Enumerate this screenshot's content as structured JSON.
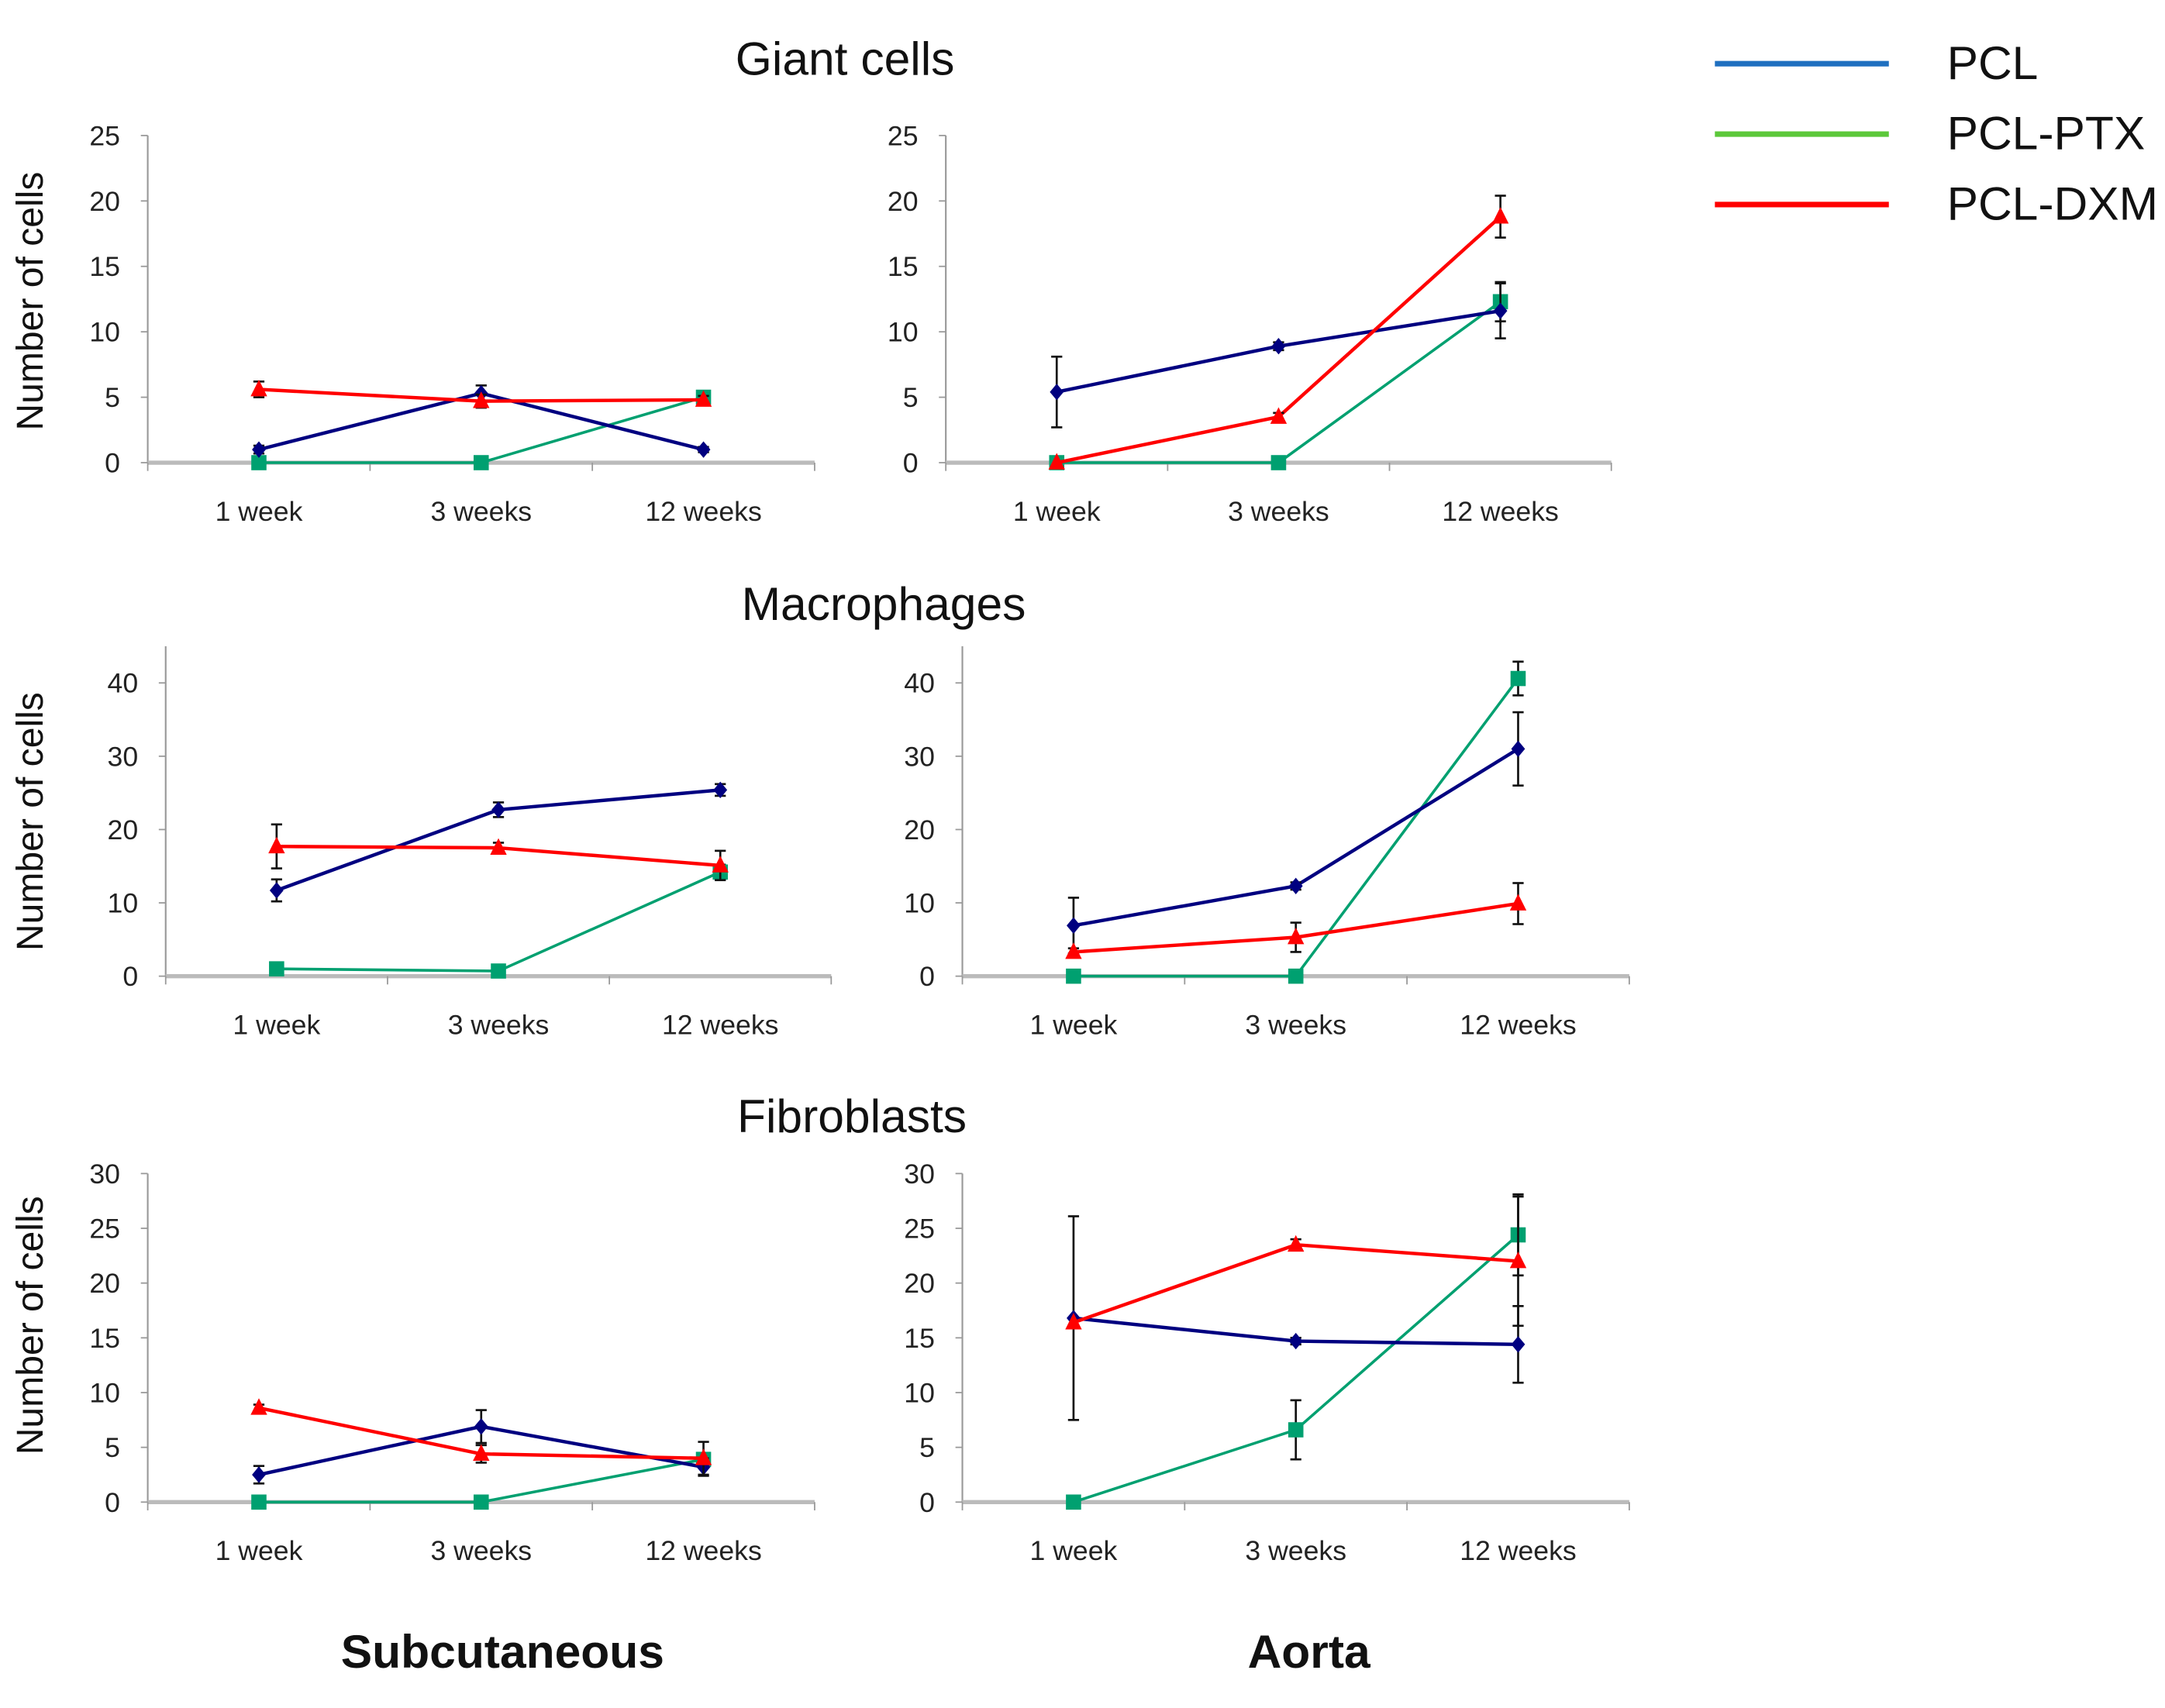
{
  "chart_data": {
    "type": "line",
    "categories": [
      "1 week",
      "3 weeks",
      "12 weeks"
    ],
    "ylabel": "Number of cells",
    "column_labels": [
      "Subcutaneous",
      "Aorta"
    ],
    "legend": {
      "placement": "top-right",
      "entries": [
        {
          "name": "PCL",
          "color": "#1f6fc0"
        },
        {
          "name": "PCL-PTX",
          "color": "#5cc83a"
        },
        {
          "name": "PCL-DXM",
          "color": "#ff0000"
        }
      ]
    },
    "series_style": {
      "PCL": {
        "line": "#000080",
        "marker": "diamond"
      },
      "PCL-PTX": {
        "line": "#00a070",
        "marker": "square"
      },
      "PCL-DXM": {
        "line": "#ff0000",
        "marker": "triangle"
      }
    },
    "rows": [
      {
        "title": "Giant cells",
        "ylim": [
          0,
          25
        ],
        "yticks": [
          0,
          5,
          10,
          15,
          20,
          25
        ],
        "panels": [
          {
            "site": "Subcutaneous",
            "series": [
              {
                "name": "PCL",
                "values": [
                  1.0,
                  5.3,
                  1.0
                ],
                "errors": [
                  0.3,
                  0.6,
                  0.2
                ]
              },
              {
                "name": "PCL-PTX",
                "values": [
                  0,
                  0,
                  5.0
                ],
                "errors": [
                  0,
                  0,
                  0.2
                ]
              },
              {
                "name": "PCL-DXM",
                "values": [
                  5.6,
                  4.7,
                  4.8
                ],
                "errors": [
                  0.6,
                  0.5,
                  0.3
                ]
              }
            ]
          },
          {
            "site": "Aorta",
            "series": [
              {
                "name": "PCL",
                "values": [
                  5.4,
                  8.9,
                  11.6
                ],
                "errors": [
                  2.7,
                  0.3,
                  2.1
                ]
              },
              {
                "name": "PCL-PTX",
                "values": [
                  0,
                  0,
                  12.3
                ],
                "errors": [
                  0,
                  0,
                  1.5
                ]
              },
              {
                "name": "PCL-DXM",
                "values": [
                  0,
                  3.5,
                  18.8
                ],
                "errors": [
                  0,
                  0.3,
                  1.6
                ]
              }
            ]
          }
        ]
      },
      {
        "title": "Macrophages",
        "ylim": [
          0,
          45
        ],
        "yticks": [
          0,
          10,
          20,
          30,
          40
        ],
        "panels": [
          {
            "site": "Subcutaneous",
            "series": [
              {
                "name": "PCL",
                "values": [
                  11.7,
                  22.7,
                  25.4
                ],
                "errors": [
                  1.5,
                  1.0,
                  0.8
                ]
              },
              {
                "name": "PCL-PTX",
                "values": [
                  1.0,
                  0.7,
                  14.2
                ],
                "errors": [
                  0,
                  0,
                  1.0
                ]
              },
              {
                "name": "PCL-DXM",
                "values": [
                  17.7,
                  17.5,
                  15.1
                ],
                "errors": [
                  3.0,
                  0.7,
                  2.0
                ]
              }
            ]
          },
          {
            "site": "Aorta",
            "series": [
              {
                "name": "PCL",
                "values": [
                  6.9,
                  12.3,
                  31.0
                ],
                "errors": [
                  3.8,
                  0.5,
                  5.0
                ]
              },
              {
                "name": "PCL-PTX",
                "values": [
                  0,
                  0,
                  40.6
                ],
                "errors": [
                  0,
                  0,
                  2.3
                ]
              },
              {
                "name": "PCL-DXM",
                "values": [
                  3.3,
                  5.3,
                  9.9
                ],
                "errors": [
                  0.5,
                  2.0,
                  2.8
                ]
              }
            ]
          }
        ]
      },
      {
        "title": "Fibroblasts",
        "ylim": [
          0,
          30
        ],
        "yticks": [
          0,
          5,
          10,
          15,
          20,
          25,
          30
        ],
        "panels": [
          {
            "site": "Subcutaneous",
            "series": [
              {
                "name": "PCL",
                "values": [
                  2.5,
                  6.9,
                  3.2
                ],
                "errors": [
                  0.8,
                  1.5,
                  0.8
                ]
              },
              {
                "name": "PCL-PTX",
                "values": [
                  0,
                  0,
                  3.9
                ],
                "errors": [
                  0,
                  0,
                  0.3
                ]
              },
              {
                "name": "PCL-DXM",
                "values": [
                  8.6,
                  4.4,
                  4.0
                ],
                "errors": [
                  0.3,
                  0.8,
                  1.5
                ]
              }
            ]
          },
          {
            "site": "Aorta",
            "series": [
              {
                "name": "PCL",
                "values": [
                  16.8,
                  14.7,
                  14.4
                ],
                "errors": [
                  9.3,
                  0.3,
                  3.5
                ]
              },
              {
                "name": "PCL-PTX",
                "values": [
                  0,
                  6.6,
                  24.4
                ],
                "errors": [
                  0,
                  2.7,
                  3.7
                ]
              },
              {
                "name": "PCL-DXM",
                "values": [
                  16.4,
                  23.5,
                  22.0
                ],
                "errors": [
                  0,
                  0.5,
                  5.9
                ]
              }
            ]
          }
        ]
      }
    ]
  }
}
